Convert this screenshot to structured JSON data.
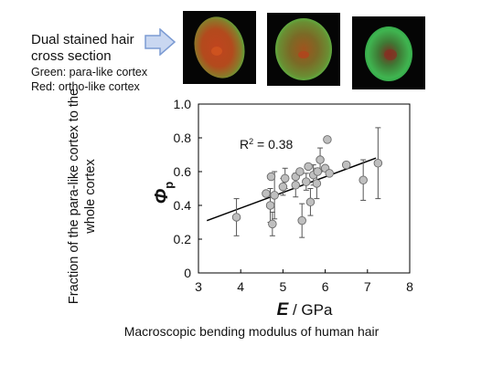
{
  "legend": {
    "title": [
      "Dual stained hair",
      "cross section"
    ],
    "lines": [
      "Green: para-like cortex",
      "Red: ortho-like cortex"
    ]
  },
  "outer_ylabel": "Fraction of the para-like cortex to the whole cortex",
  "caption": "Macroscopic bending modulus of human hair",
  "colors": {
    "arrow_fill": "#c9d7f1",
    "arrow_stroke": "#7c9bd3",
    "marker": "#bfbfbf",
    "marker_edge": "#6a6a6a",
    "line": "#000000"
  },
  "chart_data": {
    "type": "scatter",
    "x_label": "E",
    "x_unit": "GPa",
    "y_label": "Φp",
    "xlim": [
      3,
      8
    ],
    "ylim": [
      0,
      1.0
    ],
    "xticks": [
      3,
      4,
      5,
      6,
      7,
      8
    ],
    "yticks": [
      0,
      0.2,
      0.4,
      0.6,
      0.8,
      1.0
    ],
    "ytick_labels": [
      "0",
      "0.2",
      "0.4",
      "0.6",
      "0.8",
      "1.0"
    ],
    "annotation": "R² = 0.38",
    "fit_line": {
      "x": [
        3.2,
        7.2
      ],
      "y": [
        0.31,
        0.68
      ]
    },
    "points": [
      {
        "x": 3.9,
        "y": 0.33,
        "err": 0.11
      },
      {
        "x": 4.6,
        "y": 0.47,
        "err": 0.0
      },
      {
        "x": 4.7,
        "y": 0.4,
        "err": 0.1
      },
      {
        "x": 4.72,
        "y": 0.57,
        "err": 0.0
      },
      {
        "x": 4.75,
        "y": 0.29,
        "err": 0.07
      },
      {
        "x": 4.8,
        "y": 0.46,
        "err": 0.14
      },
      {
        "x": 5.0,
        "y": 0.51,
        "err": 0.05
      },
      {
        "x": 5.05,
        "y": 0.56,
        "err": 0.06
      },
      {
        "x": 5.3,
        "y": 0.52,
        "err": 0.07
      },
      {
        "x": 5.3,
        "y": 0.57,
        "err": 0.0
      },
      {
        "x": 5.4,
        "y": 0.6,
        "err": 0.0
      },
      {
        "x": 5.45,
        "y": 0.31,
        "err": 0.1
      },
      {
        "x": 5.55,
        "y": 0.54,
        "err": 0.05
      },
      {
        "x": 5.6,
        "y": 0.63,
        "err": 0.0
      },
      {
        "x": 5.65,
        "y": 0.42,
        "err": 0.08
      },
      {
        "x": 5.72,
        "y": 0.58,
        "err": 0.06
      },
      {
        "x": 5.8,
        "y": 0.53,
        "err": 0.09
      },
      {
        "x": 5.82,
        "y": 0.6,
        "err": 0.0
      },
      {
        "x": 5.88,
        "y": 0.67,
        "err": 0.07
      },
      {
        "x": 6.0,
        "y": 0.62,
        "err": 0.0
      },
      {
        "x": 6.05,
        "y": 0.79,
        "err": 0.0
      },
      {
        "x": 6.1,
        "y": 0.59,
        "err": 0.0
      },
      {
        "x": 6.5,
        "y": 0.64,
        "err": 0.0
      },
      {
        "x": 6.9,
        "y": 0.55,
        "err": 0.12
      },
      {
        "x": 7.25,
        "y": 0.65,
        "err": 0.21
      }
    ]
  }
}
